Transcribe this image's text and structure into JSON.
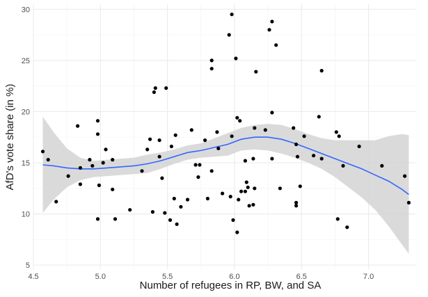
{
  "chart_data": {
    "type": "scatter",
    "title": "",
    "xlabel": "Number of refugees in RP, BW, and SA",
    "ylabel": "AfD's vote share (in %)",
    "xlim": [
      4.5,
      7.35
    ],
    "ylim": [
      4.6,
      30.5
    ],
    "x_ticks": [
      4.5,
      5.0,
      5.5,
      6.0,
      6.5,
      7.0
    ],
    "y_ticks": [
      5,
      10,
      15,
      20,
      25,
      30
    ],
    "grid": true,
    "legend": "none",
    "colors": {
      "points": "#000000",
      "smooth_line": "#3366FF",
      "ribbon": "#d4d4d4",
      "grid_major": "#ebebeb",
      "grid_minor": "#f5f5f5"
    },
    "points": [
      {
        "x": 4.57,
        "y": 16.1
      },
      {
        "x": 4.61,
        "y": 15.3
      },
      {
        "x": 4.67,
        "y": 11.2
      },
      {
        "x": 4.76,
        "y": 13.7
      },
      {
        "x": 4.83,
        "y": 18.6
      },
      {
        "x": 4.85,
        "y": 14.5
      },
      {
        "x": 4.85,
        "y": 12.9
      },
      {
        "x": 4.92,
        "y": 15.3
      },
      {
        "x": 4.94,
        "y": 14.7
      },
      {
        "x": 4.98,
        "y": 19.1
      },
      {
        "x": 4.98,
        "y": 17.8
      },
      {
        "x": 4.99,
        "y": 12.8
      },
      {
        "x": 4.98,
        "y": 9.5
      },
      {
        "x": 5.02,
        "y": 15.0
      },
      {
        "x": 5.04,
        "y": 16.3
      },
      {
        "x": 5.09,
        "y": 15.3
      },
      {
        "x": 5.09,
        "y": 12.4
      },
      {
        "x": 5.11,
        "y": 9.5
      },
      {
        "x": 5.22,
        "y": 10.4
      },
      {
        "x": 5.31,
        "y": 14.2
      },
      {
        "x": 5.35,
        "y": 16.3
      },
      {
        "x": 5.37,
        "y": 17.3
      },
      {
        "x": 5.39,
        "y": 10.2
      },
      {
        "x": 5.4,
        "y": 21.9
      },
      {
        "x": 5.41,
        "y": 22.3
      },
      {
        "x": 5.44,
        "y": 17.2
      },
      {
        "x": 5.44,
        "y": 15.6
      },
      {
        "x": 5.46,
        "y": 13.5
      },
      {
        "x": 5.48,
        "y": 10.1
      },
      {
        "x": 5.49,
        "y": 22.3
      },
      {
        "x": 5.52,
        "y": 9.4
      },
      {
        "x": 5.53,
        "y": 16.6
      },
      {
        "x": 5.55,
        "y": 11.5
      },
      {
        "x": 5.56,
        "y": 17.7
      },
      {
        "x": 5.57,
        "y": 9.0
      },
      {
        "x": 5.6,
        "y": 10.7
      },
      {
        "x": 5.65,
        "y": 11.4
      },
      {
        "x": 5.68,
        "y": 18.2
      },
      {
        "x": 5.71,
        "y": 14.8
      },
      {
        "x": 5.73,
        "y": 13.6
      },
      {
        "x": 5.74,
        "y": 14.8
      },
      {
        "x": 5.78,
        "y": 17.2
      },
      {
        "x": 5.8,
        "y": 11.5
      },
      {
        "x": 5.83,
        "y": 24.2
      },
      {
        "x": 5.83,
        "y": 25.0
      },
      {
        "x": 5.83,
        "y": 14.2
      },
      {
        "x": 5.87,
        "y": 18.0
      },
      {
        "x": 5.88,
        "y": 16.4
      },
      {
        "x": 5.91,
        "y": 12.0
      },
      {
        "x": 5.96,
        "y": 27.5
      },
      {
        "x": 5.97,
        "y": 11.7
      },
      {
        "x": 5.98,
        "y": 29.5
      },
      {
        "x": 5.98,
        "y": 17.6
      },
      {
        "x": 5.99,
        "y": 9.4
      },
      {
        "x": 6.01,
        "y": 25.2
      },
      {
        "x": 6.02,
        "y": 19.4
      },
      {
        "x": 6.02,
        "y": 8.2
      },
      {
        "x": 6.03,
        "y": 11.4
      },
      {
        "x": 6.04,
        "y": 19.1
      },
      {
        "x": 6.05,
        "y": 12.2
      },
      {
        "x": 6.08,
        "y": 15.2
      },
      {
        "x": 6.08,
        "y": 12.2
      },
      {
        "x": 6.09,
        "y": 13.1
      },
      {
        "x": 6.1,
        "y": 12.6
      },
      {
        "x": 6.11,
        "y": 10.8
      },
      {
        "x": 6.14,
        "y": 15.4
      },
      {
        "x": 6.14,
        "y": 10.9
      },
      {
        "x": 6.15,
        "y": 12.5
      },
      {
        "x": 6.15,
        "y": 18.4
      },
      {
        "x": 6.16,
        "y": 23.9
      },
      {
        "x": 6.23,
        "y": 18.2
      },
      {
        "x": 6.26,
        "y": 28.0
      },
      {
        "x": 6.28,
        "y": 28.8
      },
      {
        "x": 6.28,
        "y": 19.9
      },
      {
        "x": 6.28,
        "y": 15.4
      },
      {
        "x": 6.31,
        "y": 26.5
      },
      {
        "x": 6.34,
        "y": 12.5
      },
      {
        "x": 6.44,
        "y": 18.4
      },
      {
        "x": 6.46,
        "y": 16.8
      },
      {
        "x": 6.46,
        "y": 11.1
      },
      {
        "x": 6.46,
        "y": 10.8
      },
      {
        "x": 6.47,
        "y": 15.6
      },
      {
        "x": 6.49,
        "y": 12.7
      },
      {
        "x": 6.52,
        "y": 17.6
      },
      {
        "x": 6.59,
        "y": 15.7
      },
      {
        "x": 6.63,
        "y": 19.5
      },
      {
        "x": 6.65,
        "y": 15.4
      },
      {
        "x": 6.65,
        "y": 24.0
      },
      {
        "x": 6.76,
        "y": 18.0
      },
      {
        "x": 6.78,
        "y": 17.6
      },
      {
        "x": 6.77,
        "y": 9.5
      },
      {
        "x": 6.81,
        "y": 14.7
      },
      {
        "x": 6.84,
        "y": 8.7
      },
      {
        "x": 6.93,
        "y": 16.6
      },
      {
        "x": 7.1,
        "y": 14.7
      },
      {
        "x": 7.27,
        "y": 13.7
      },
      {
        "x": 7.3,
        "y": 11.1
      }
    ],
    "smooth": {
      "x": [
        4.57,
        4.65,
        4.75,
        4.85,
        4.95,
        5.05,
        5.15,
        5.25,
        5.35,
        5.45,
        5.55,
        5.65,
        5.75,
        5.85,
        5.95,
        6.05,
        6.15,
        6.25,
        6.35,
        6.45,
        6.55,
        6.65,
        6.75,
        6.85,
        6.95,
        7.05,
        7.15,
        7.25,
        7.3
      ],
      "y": [
        14.8,
        14.7,
        14.5,
        14.4,
        14.4,
        14.5,
        14.6,
        14.7,
        14.9,
        15.2,
        15.6,
        16.0,
        16.2,
        16.5,
        16.8,
        17.3,
        17.5,
        17.5,
        17.3,
        16.9,
        16.4,
        15.9,
        15.4,
        14.9,
        14.4,
        13.8,
        13.2,
        12.4,
        11.9
      ],
      "lower": [
        10.1,
        11.4,
        12.6,
        13.3,
        13.6,
        13.7,
        13.8,
        13.9,
        14.0,
        14.4,
        14.9,
        15.3,
        15.5,
        15.6,
        15.7,
        16.2,
        16.3,
        16.2,
        15.9,
        15.5,
        15.0,
        14.4,
        13.6,
        12.6,
        11.6,
        10.4,
        8.8,
        7.0,
        6.1
      ],
      "upper": [
        19.5,
        18.0,
        16.4,
        15.5,
        15.2,
        15.3,
        15.4,
        15.5,
        15.8,
        16.0,
        16.3,
        16.7,
        16.9,
        17.4,
        17.9,
        18.4,
        18.7,
        18.8,
        18.7,
        18.3,
        17.8,
        17.4,
        17.2,
        17.2,
        17.2,
        17.2,
        17.6,
        17.8,
        17.7
      ]
    }
  }
}
